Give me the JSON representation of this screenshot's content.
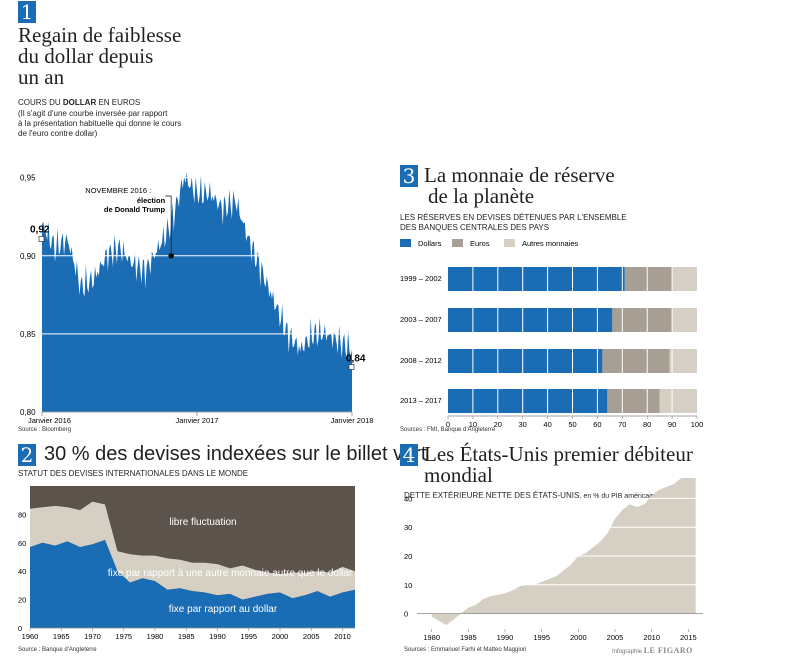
{
  "panel1": {
    "number": "1",
    "title_lines": [
      "Regain de faiblesse",
      "du dollar depuis",
      "un an"
    ],
    "sub_pre": "COURS DU ",
    "sub_bold": "DOLLAR",
    "sub_post": " EN EUROS",
    "note_lines": [
      "(Il s'agit d'une courbe inversée par rapport",
      "à la présentation habituelle qui donne le cours",
      "de l'euro contre dollar)"
    ],
    "source": "Source : Bloomberg",
    "annotation_top": "NOVEMBRE 2016 :",
    "annotation_bold": [
      "élection",
      "de Donald Trump"
    ],
    "start_label": "0,92",
    "end_label": "0,84"
  },
  "panel2": {
    "number": "2",
    "title": "30 % des devises indexées sur le billet vert",
    "subtitle": "STATUT DES DEVISES INTERNATIONALES DANS LE MONDE",
    "source": "Source : Banque d'Angleterre",
    "labels": [
      "libre fluctuation",
      "fixe par rapport à une autre monnaie autre que le dollar",
      "fixe par rapport au dollar"
    ]
  },
  "panel3": {
    "number": "3",
    "title_lines": [
      "La monnaie de réserve",
      "de la planète"
    ],
    "subtitle_lines": [
      "LES RÉSERVES EN DEVISES DÉTENUES PAR L'ENSEMBLE",
      "DES BANQUES CENTRALES DES PAYS"
    ],
    "source": "Sources : FMI, Banque d'Angleterre"
  },
  "panel4": {
    "number": "4",
    "title_lines": [
      "Les États-Unis premier débiteur",
      "mondial"
    ],
    "subtitle": "DETTE EXTÉRIEURE NETTE DES ÉTATS-UNIS,",
    "subtitle_unit": " en % du PIB américain",
    "source": "Sources : Emmanuel Farhi et Matteo Maggiori",
    "credit_pre": "Infographie",
    "credit_brand": "LE FIGARO"
  },
  "colors": {
    "blue": "#1a6cb5",
    "taupe": "#a79e94",
    "beige": "#d5d0c3",
    "dark": "#5b534c",
    "grey": "#948b82"
  },
  "chart_data": [
    {
      "type": "area",
      "id": "dollar_euro",
      "ylim": [
        0.8,
        0.96
      ],
      "yticks": [
        "0,80",
        "0,85",
        "0,90",
        "0,95"
      ],
      "ytick_values": [
        0.8,
        0.85,
        0.9,
        0.95
      ],
      "xticks": [
        "Janvier 2016",
        "Janvier 2017",
        "Janvier 2018"
      ],
      "xtick_values": [
        "2016-01",
        "2017-01",
        "2018-01"
      ],
      "x": [
        "2016-01",
        "2016-02",
        "2016-03",
        "2016-04",
        "2016-05",
        "2016-06",
        "2016-07",
        "2016-08",
        "2016-09",
        "2016-10",
        "2016-11",
        "2016-12",
        "2017-01",
        "2017-02",
        "2017-03",
        "2017-04",
        "2017-05",
        "2017-06",
        "2017-07",
        "2017-08",
        "2017-09",
        "2017-10",
        "2017-11",
        "2017-12",
        "2018-01"
      ],
      "values": [
        0.92,
        0.905,
        0.91,
        0.88,
        0.885,
        0.9,
        0.905,
        0.895,
        0.89,
        0.905,
        0.92,
        0.95,
        0.94,
        0.94,
        0.93,
        0.935,
        0.91,
        0.89,
        0.87,
        0.85,
        0.84,
        0.85,
        0.85,
        0.845,
        0.84
      ],
      "annotation_point": {
        "x": "2016-11",
        "y": 0.9
      }
    },
    {
      "type": "area",
      "id": "currency_status",
      "ylim": [
        0,
        100
      ],
      "yticks": [
        "0",
        "20",
        "40",
        "60",
        "80"
      ],
      "ytick_values": [
        0,
        20,
        40,
        60,
        80
      ],
      "xticks": [
        "1960",
        "1965",
        "1970",
        "1975",
        "1980",
        "1985",
        "1990",
        "1995",
        "2000",
        "2005",
        "2010"
      ],
      "x": [
        1960,
        1962,
        1964,
        1966,
        1968,
        1970,
        1972,
        1974,
        1976,
        1978,
        1980,
        1982,
        1984,
        1986,
        1988,
        1990,
        1992,
        1994,
        1996,
        1998,
        2000,
        2002,
        2004,
        2006,
        2008,
        2010,
        2012
      ],
      "series": [
        {
          "name": "fixe par rapport au dollar",
          "values": [
            57,
            60,
            58,
            61,
            57,
            59,
            62,
            40,
            32,
            35,
            33,
            27,
            28,
            26,
            25,
            23,
            24,
            20,
            22,
            24,
            25,
            21,
            23,
            26,
            22,
            25,
            27
          ]
        },
        {
          "name": "fixe par rapport à une autre monnaie autre que le dollar",
          "values": [
            27,
            25,
            28,
            24,
            26,
            30,
            25,
            14,
            20,
            16,
            18,
            22,
            20,
            20,
            21,
            22,
            18,
            24,
            19,
            15,
            13,
            18,
            16,
            14,
            17,
            18,
            13
          ]
        },
        {
          "name": "libre fluctuation",
          "values": [
            16,
            15,
            14,
            15,
            17,
            11,
            13,
            46,
            48,
            49,
            49,
            51,
            52,
            54,
            54,
            55,
            58,
            56,
            59,
            61,
            62,
            61,
            61,
            60,
            61,
            57,
            60
          ]
        }
      ]
    },
    {
      "type": "bar",
      "id": "reserves",
      "orientation": "horizontal",
      "stacked": true,
      "categories": [
        "1999 – 2002",
        "2003 – 2007",
        "2008 – 2012",
        "2013 – 2017"
      ],
      "series": [
        {
          "name": "Dollars",
          "values": [
            71,
            66,
            62,
            64
          ]
        },
        {
          "name": "Euros",
          "values": [
            19,
            24,
            27,
            21
          ]
        },
        {
          "name": "Autres monnaies",
          "values": [
            10,
            10,
            11,
            15
          ]
        }
      ],
      "xlim": [
        0,
        100
      ],
      "xticks": [
        "0",
        "10",
        "20",
        "30",
        "40",
        "50",
        "60",
        "70",
        "80",
        "90",
        "100"
      ]
    },
    {
      "type": "area",
      "id": "us_debt",
      "ylim": [
        -5,
        45
      ],
      "yticks": [
        "0",
        "10",
        "20",
        "30",
        "40"
      ],
      "ytick_values": [
        0,
        10,
        20,
        30,
        40
      ],
      "xticks": [
        "1980",
        "1985",
        "1990",
        "1995",
        "2000",
        "2005",
        "2010",
        "2015"
      ],
      "x": [
        1980,
        1982,
        1983,
        1984,
        1985,
        1986,
        1987,
        1988,
        1989,
        1990,
        1991,
        1992,
        1993,
        1994,
        1995,
        1996,
        1997,
        1998,
        1999,
        2000,
        2001,
        2002,
        2003,
        2004,
        2005,
        2006,
        2007,
        2008,
        2009,
        2010,
        2011,
        2012,
        2013,
        2014,
        2015,
        2016
      ],
      "values": [
        -1,
        -4,
        -2,
        0,
        2,
        3,
        5,
        6,
        6.5,
        7,
        8,
        9.5,
        10,
        10,
        11,
        12,
        13,
        15,
        17,
        20,
        21,
        23,
        25,
        28,
        33,
        36,
        38,
        37,
        38,
        41,
        43,
        44,
        45,
        47,
        48,
        49
      ]
    }
  ]
}
